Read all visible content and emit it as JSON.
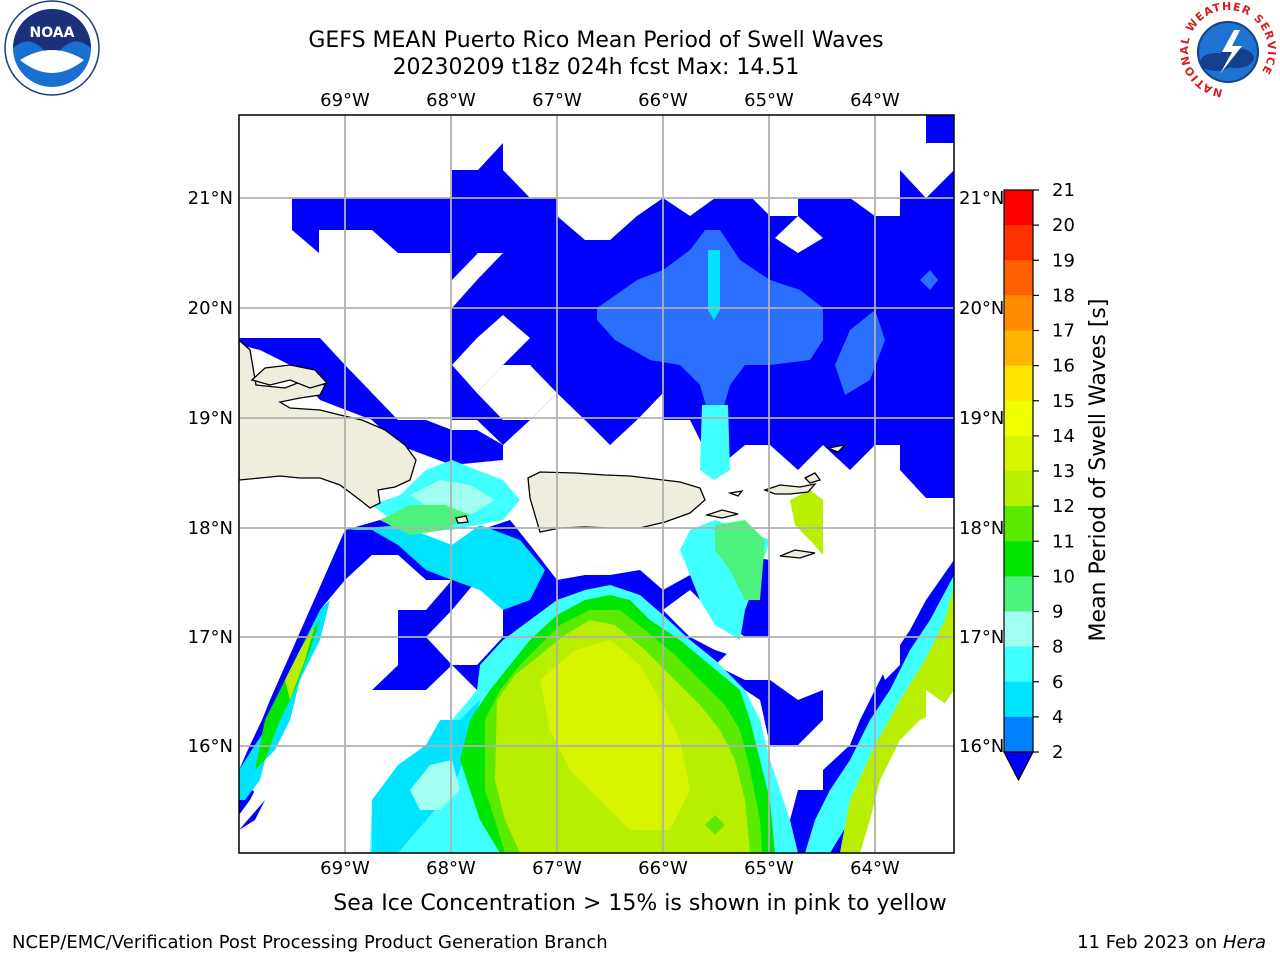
{
  "title": {
    "line1": "GEFS MEAN Puerto Rico Mean Period of Swell Waves",
    "line2": "20230209 t18z 024h fcst   Max: 14.51"
  },
  "map": {
    "lon_ticks": [
      "69°W",
      "68°W",
      "67°W",
      "66°W",
      "65°W",
      "64°W"
    ],
    "lat_ticks": [
      "21°N",
      "20°N",
      "19°N",
      "18°N",
      "17°N",
      "16°N"
    ],
    "land_color": "#efedde",
    "ocean_low_color": "#0000ff"
  },
  "colorbar": {
    "label": "Mean Period of Swell Waves [s]",
    "ticks": [
      "21",
      "20",
      "19",
      "18",
      "17",
      "16",
      "15",
      "14",
      "13",
      "12",
      "11",
      "10",
      "9",
      "8",
      "6",
      "4",
      "2"
    ],
    "colors": [
      "#ff0000",
      "#ff3000",
      "#ff6000",
      "#ff8c00",
      "#ffb400",
      "#ffe600",
      "#f0ff00",
      "#d8f500",
      "#b8ef00",
      "#5cea00",
      "#00e600",
      "#4cf27c",
      "#a0fff0",
      "#40ffff",
      "#00e4ff",
      "#0080ff",
      "#0000ff"
    ]
  },
  "caption": "Sea Ice Concentration > 15% is shown in pink to yellow",
  "footer": {
    "left": "NCEP/EMC/Verification Post Processing Product Generation Branch",
    "date": "11 Feb 2023 on ",
    "host": "Hera"
  },
  "logos": {
    "noaa": "NOAA",
    "nws_ring": "NATIONAL WEATHER SERVICE"
  }
}
